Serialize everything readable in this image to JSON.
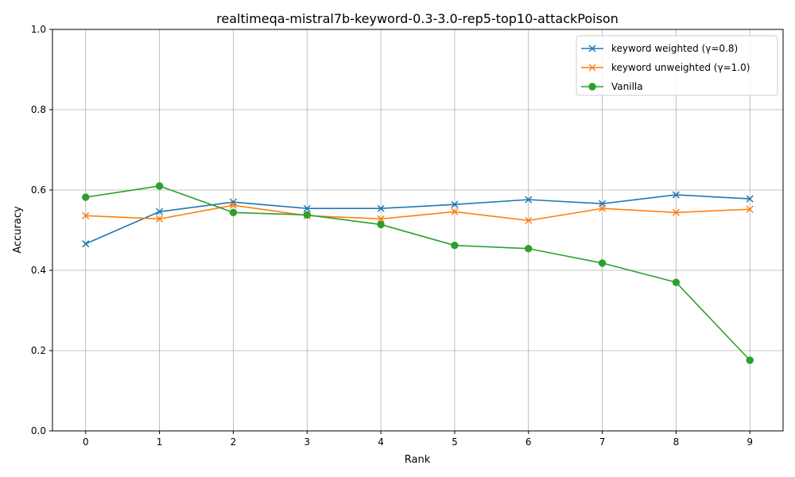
{
  "chart_data": {
    "type": "line",
    "title": "realtimeqa-mistral7b-keyword-0.3-3.0-rep5-top10-attackPoison",
    "xlabel": "Rank",
    "ylabel": "Accuracy",
    "xlim": [
      -0.45,
      9.45
    ],
    "ylim": [
      0.0,
      1.0
    ],
    "x": [
      0,
      1,
      2,
      3,
      4,
      5,
      6,
      7,
      8,
      9
    ],
    "x_ticks": [
      "0",
      "1",
      "2",
      "3",
      "4",
      "5",
      "6",
      "7",
      "8",
      "9"
    ],
    "y_ticks": [
      0.0,
      0.2,
      0.4,
      0.6,
      0.8,
      1.0
    ],
    "y_tick_labels": [
      "0.0",
      "0.2",
      "0.4",
      "0.6",
      "0.8",
      "1.0"
    ],
    "grid": true,
    "legend_position": "top-right",
    "series": [
      {
        "name": "keyword weighted (γ=0.8)",
        "color": "#1f77b4",
        "marker": "x",
        "values": [
          0.466,
          0.546,
          0.57,
          0.554,
          0.554,
          0.564,
          0.576,
          0.566,
          0.588,
          0.578
        ]
      },
      {
        "name": "keyword unweighted (γ=1.0)",
        "color": "#ff7f0e",
        "marker": "x",
        "values": [
          0.536,
          0.528,
          0.562,
          0.536,
          0.528,
          0.546,
          0.524,
          0.554,
          0.544,
          0.552
        ]
      },
      {
        "name": "Vanilla",
        "color": "#2ca02c",
        "marker": "o",
        "values": [
          0.582,
          0.61,
          0.544,
          0.538,
          0.514,
          0.462,
          0.454,
          0.418,
          0.37,
          0.176
        ]
      }
    ]
  }
}
